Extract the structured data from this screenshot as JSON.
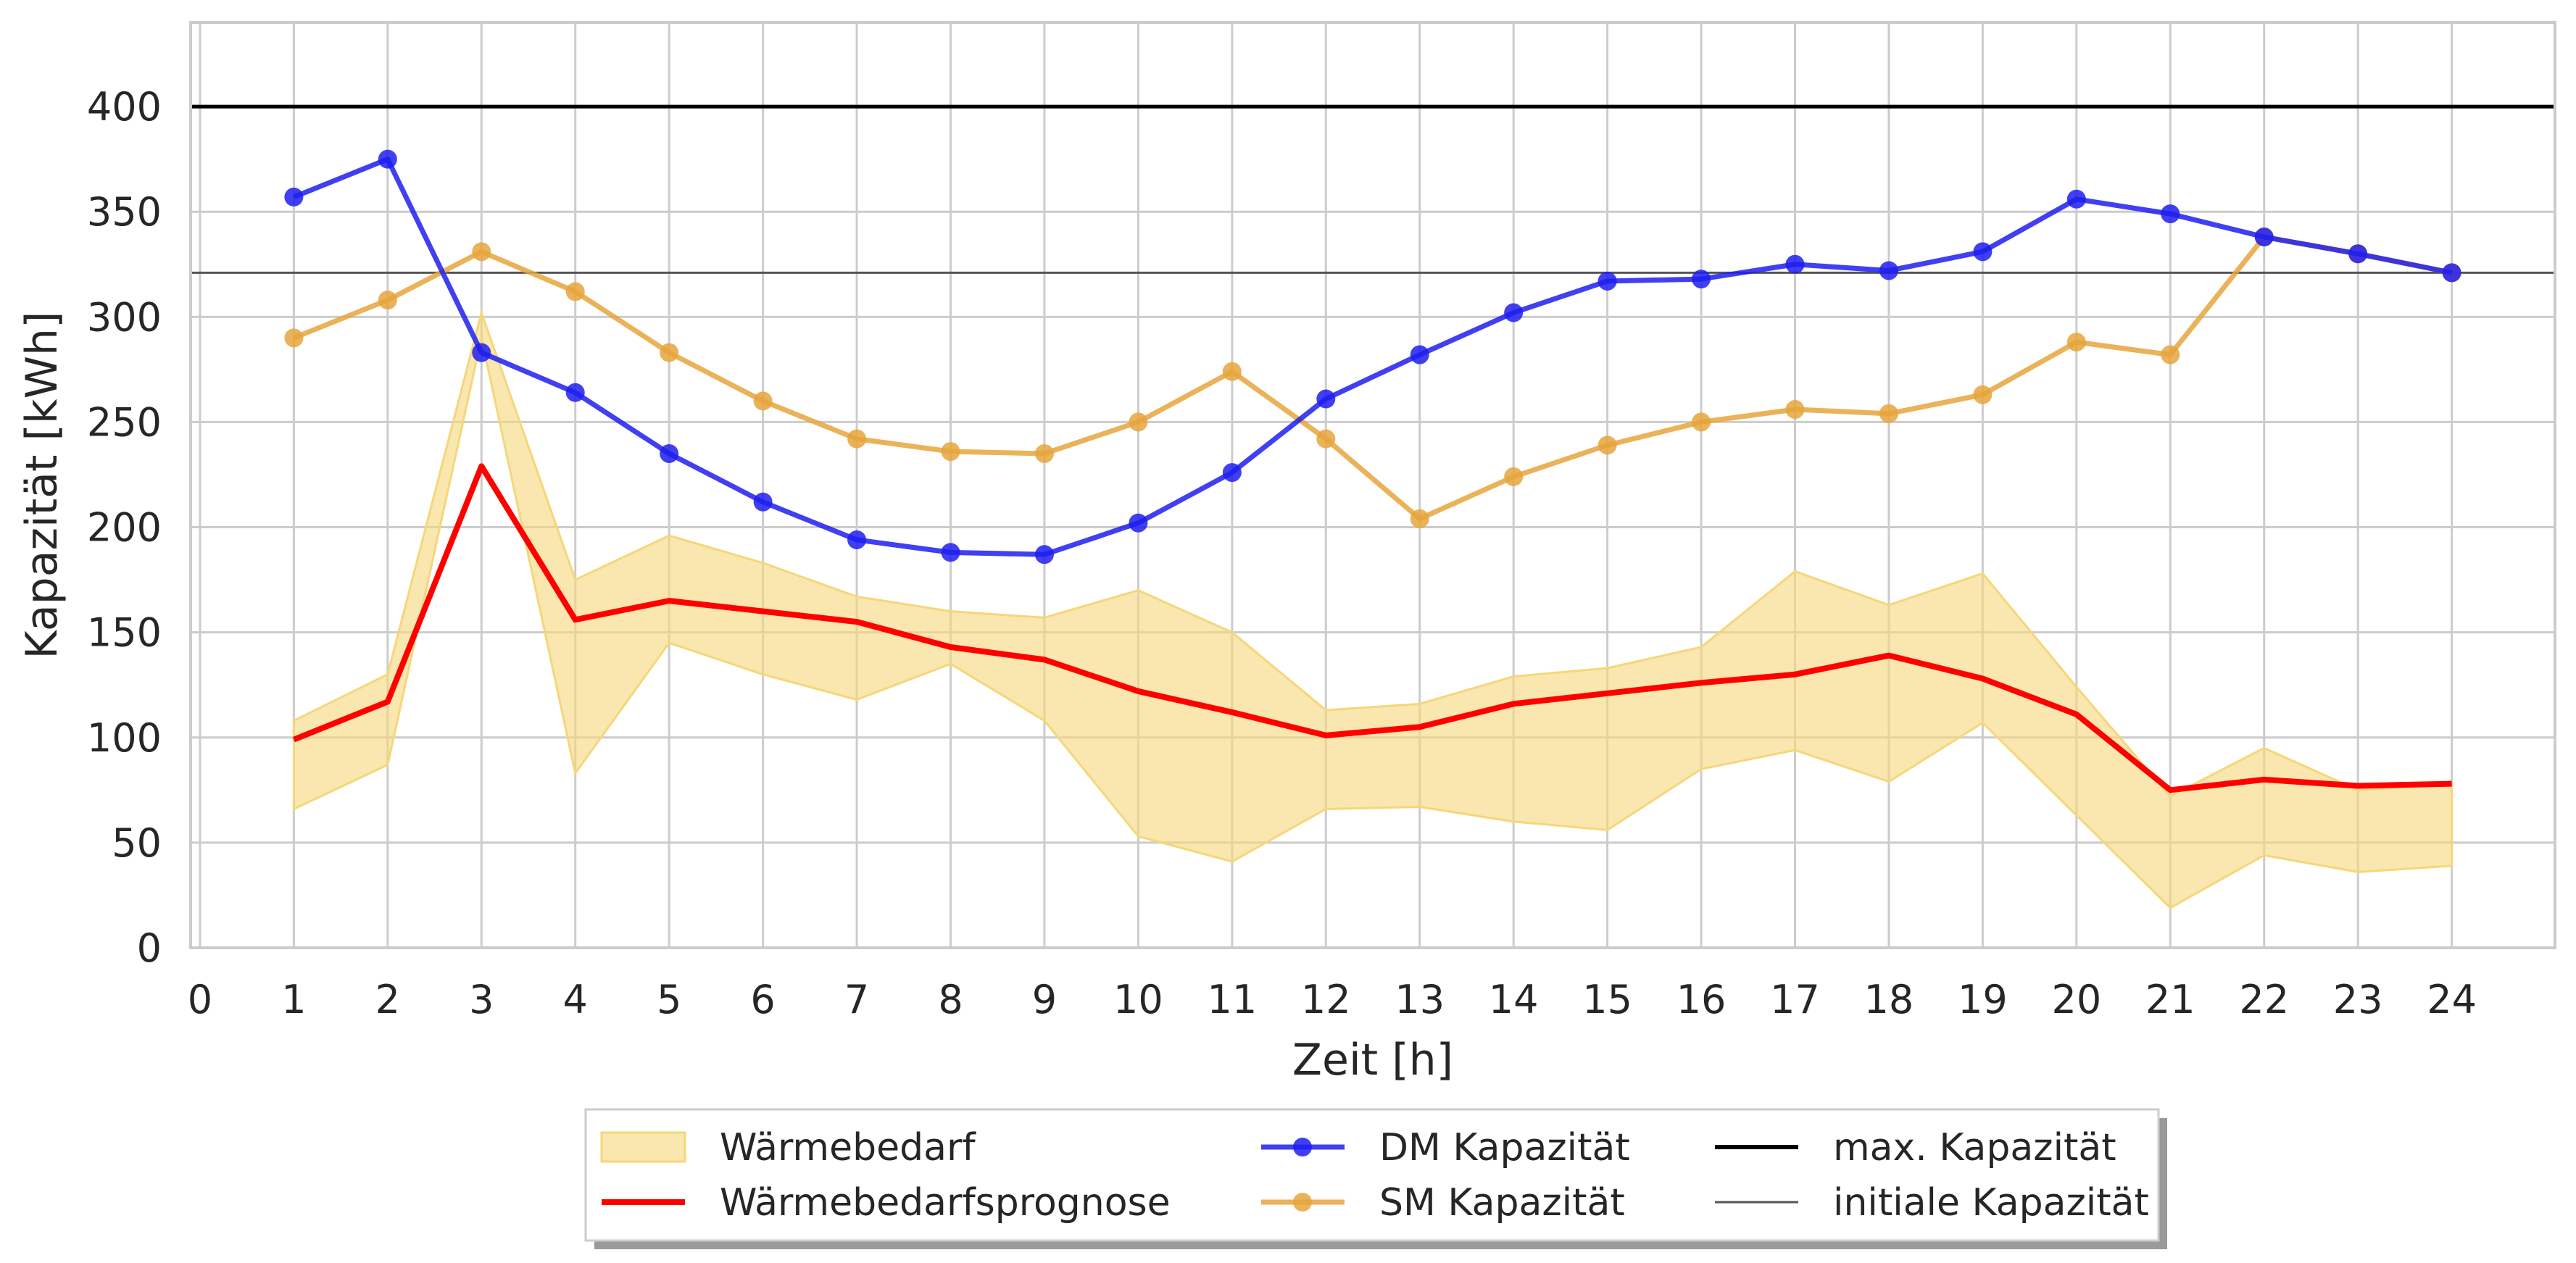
{
  "chart_data": {
    "type": "line",
    "title": "",
    "xlabel": "Zeit [h]",
    "ylabel": "Kapazität [kWh]",
    "xlim": [
      -0.1,
      25.1
    ],
    "ylim": [
      0,
      440
    ],
    "x_ticks": [
      0,
      1,
      2,
      3,
      4,
      5,
      6,
      7,
      8,
      9,
      10,
      11,
      12,
      13,
      14,
      15,
      16,
      17,
      18,
      19,
      20,
      21,
      22,
      23,
      24
    ],
    "y_ticks": [
      0,
      50,
      100,
      150,
      200,
      250,
      300,
      350,
      400
    ],
    "grid": true,
    "legend_position": "bottom-center",
    "x": [
      1,
      2,
      3,
      4,
      5,
      6,
      7,
      8,
      9,
      10,
      11,
      12,
      13,
      14,
      15,
      16,
      17,
      18,
      19,
      20,
      21,
      22,
      23,
      24
    ],
    "band": {
      "name": "Wärmebedarf",
      "color": "#f5d77a",
      "upper": [
        108,
        130,
        302,
        175,
        196,
        183,
        167,
        160,
        157,
        170,
        150,
        113,
        116,
        129,
        133,
        143,
        179,
        163,
        178,
        124,
        72,
        95,
        75,
        78
      ],
      "lower": [
        66,
        87,
        290,
        83,
        145,
        130,
        118,
        135,
        108,
        53,
        41,
        66,
        67,
        60,
        56,
        85,
        94,
        79,
        107,
        63,
        19,
        44,
        36,
        39
      ]
    },
    "series": [
      {
        "name": "Wärmebedarfsprognose",
        "color": "#ff0000",
        "markers": false,
        "values": [
          99,
          117,
          229,
          156,
          165,
          160,
          155,
          143,
          137,
          122,
          112,
          101,
          105,
          116,
          121,
          126,
          130,
          139,
          128,
          111,
          75,
          80,
          77,
          78
        ]
      },
      {
        "name": "DM Kapazität",
        "color": "#1f1ff0",
        "markers": true,
        "values": [
          357,
          375,
          283,
          264,
          235,
          212,
          194,
          188,
          187,
          202,
          226,
          261,
          282,
          302,
          317,
          318,
          325,
          322,
          331,
          356,
          349,
          338,
          330,
          321
        ]
      },
      {
        "name": "SM Kapazität",
        "color": "#e6a43c",
        "markers": true,
        "values": [
          290,
          308,
          331,
          312,
          283,
          260,
          242,
          236,
          235,
          250,
          274,
          242,
          204,
          224,
          239,
          250,
          256,
          254,
          263,
          288,
          282,
          338,
          330,
          321
        ]
      }
    ],
    "reference_lines": [
      {
        "name": "max. Kapazität",
        "value": 400,
        "color": "#000000"
      },
      {
        "name": "initiale Kapazität",
        "value": 321,
        "color": "#555555"
      }
    ]
  }
}
